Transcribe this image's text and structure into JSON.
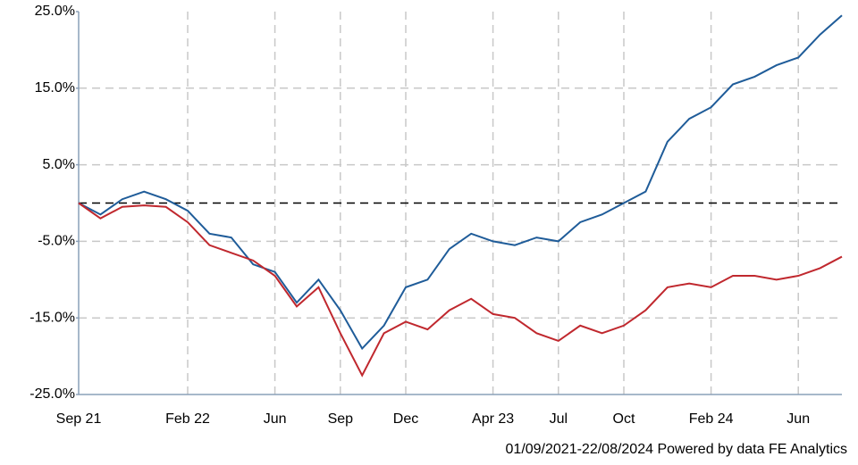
{
  "chart_data": {
    "type": "line",
    "x": [
      "2021-09",
      "2021-10",
      "2021-11",
      "2021-12",
      "2022-01",
      "2022-02",
      "2022-03",
      "2022-04",
      "2022-05",
      "2022-06",
      "2022-07",
      "2022-08",
      "2022-09",
      "2022-10",
      "2022-11",
      "2022-12",
      "2023-01",
      "2023-02",
      "2023-03",
      "2023-04",
      "2023-05",
      "2023-06",
      "2023-07",
      "2023-08",
      "2023-09",
      "2023-10",
      "2023-11",
      "2023-12",
      "2024-01",
      "2024-02",
      "2024-03",
      "2024-04",
      "2024-05",
      "2024-06",
      "2024-07",
      "2024-08"
    ],
    "series": [
      {
        "color": "#1f5c99",
        "values": [
          0,
          -1.5,
          0.5,
          1.5,
          0.5,
          -1,
          -4,
          -4.5,
          -8,
          -9,
          -13,
          -10,
          -14,
          -19,
          -16,
          -11,
          -10,
          -6,
          -4,
          -5,
          -5.5,
          -4.5,
          -5,
          -2.5,
          -1.5,
          0,
          1.5,
          8,
          11,
          12.5,
          15.5,
          16.5,
          18,
          19,
          22,
          24.5
        ]
      },
      {
        "color": "#c0282e",
        "values": [
          0,
          -2,
          -0.5,
          -0.3,
          -0.5,
          -2.5,
          -5.5,
          -6.5,
          -7.5,
          -9.5,
          -13.5,
          -11,
          -17,
          -22.5,
          -17,
          -15.5,
          -16.5,
          -14,
          -12.5,
          -14.5,
          -15,
          -17,
          -18,
          -16,
          -17,
          -16,
          -14,
          -11,
          -10.5,
          -11,
          -9.5,
          -9.5,
          -10,
          -9.5,
          -8.5,
          -7
        ]
      }
    ],
    "ylim": [
      -25,
      25
    ],
    "yticks": [
      {
        "value": 25,
        "label": "25.0%"
      },
      {
        "value": 15,
        "label": "15.0%"
      },
      {
        "value": 5,
        "label": "5.0%"
      },
      {
        "value": -5,
        "label": "-5.0%"
      },
      {
        "value": -15,
        "label": "-15.0%"
      },
      {
        "value": -25,
        "label": "-25.0%"
      }
    ],
    "xticks": [
      {
        "value": "2021-09",
        "label": "Sep 21"
      },
      {
        "value": "2022-02",
        "label": "Feb 22"
      },
      {
        "value": "2022-06",
        "label": "Jun"
      },
      {
        "value": "2022-09",
        "label": "Sep"
      },
      {
        "value": "2022-12",
        "label": "Dec"
      },
      {
        "value": "2023-04",
        "label": "Apr 23"
      },
      {
        "value": "2023-07",
        "label": "Jul"
      },
      {
        "value": "2023-10",
        "label": "Oct"
      },
      {
        "value": "2024-02",
        "label": "Feb 24"
      },
      {
        "value": "2024-06",
        "label": "Jun"
      }
    ],
    "reference_line": 0,
    "grid": true,
    "footnote": "01/09/2021-22/08/2024 Powered by data FE Analytics"
  }
}
